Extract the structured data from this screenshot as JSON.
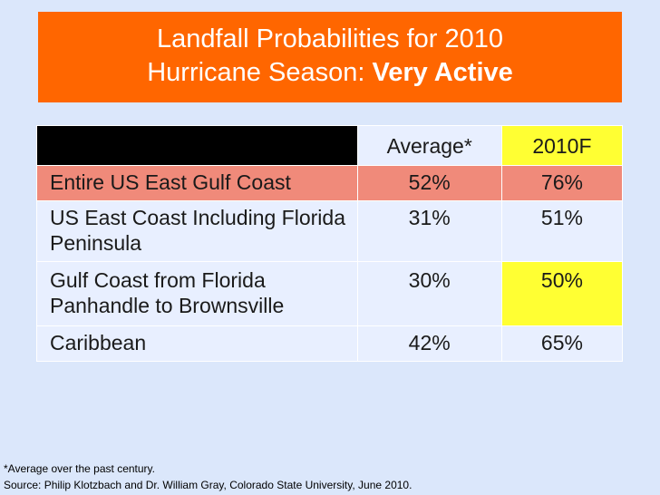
{
  "title": {
    "line1": "Landfall Probabilities  for 2010",
    "line2_prefix": "Hurricane Season: ",
    "line2_bold": "Very Active"
  },
  "table": {
    "headers": [
      "",
      "Average*",
      "2010F"
    ],
    "rows": [
      {
        "region": "Entire US East Gulf Coast",
        "average": "52%",
        "forecast": "76%"
      },
      {
        "region": "US East Coast Including Florida Peninsula",
        "average": "31%",
        "forecast": "51%"
      },
      {
        "region": "Gulf Coast from Florida Panhandle to Brownsville",
        "average": "30%",
        "forecast": "50%"
      },
      {
        "region": "Caribbean",
        "average": "42%",
        "forecast": "65%"
      }
    ]
  },
  "footnotes": {
    "average_note": "*Average over the past century.",
    "source": "Source: Philip Klotzbach and Dr. William Gray, Colorado State University, June 2010."
  },
  "colors": {
    "title_background": "#ff6600",
    "highlight_yellow": "#ffff33",
    "highlight_salmon": "#f08a7a",
    "cell_background": "#e8efff",
    "page_background": "#dbe7fb"
  }
}
